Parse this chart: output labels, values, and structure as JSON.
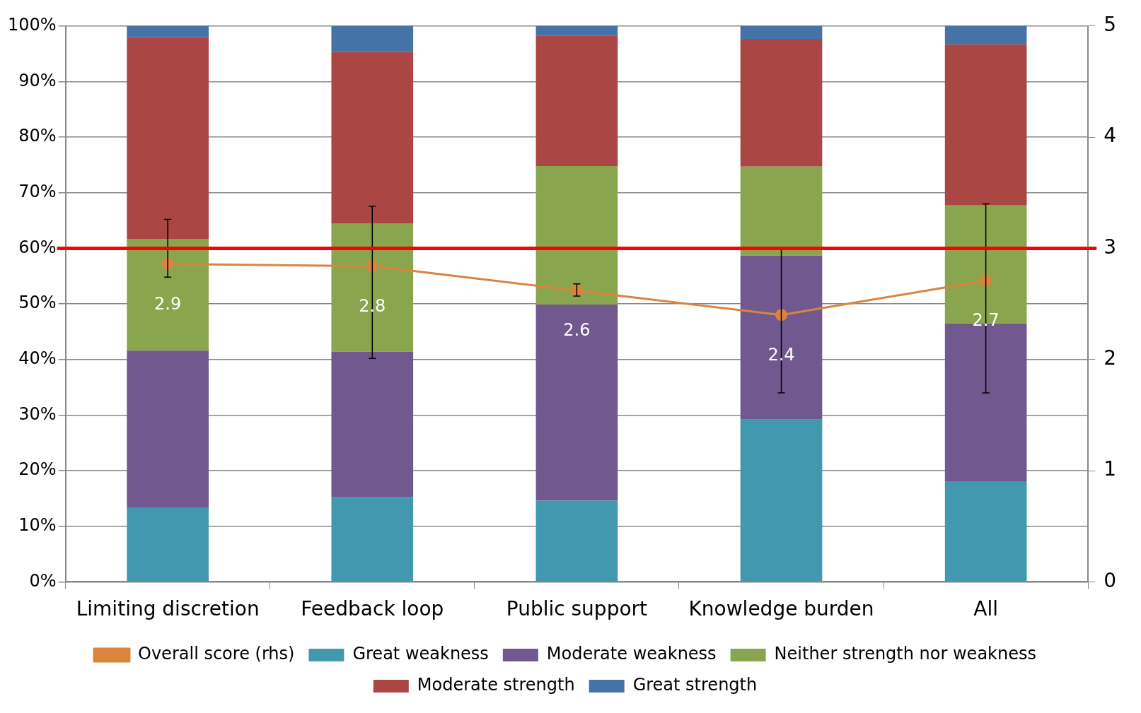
{
  "chart_data": {
    "type": "bar",
    "stacked": true,
    "categories": [
      "Limiting discretion",
      "Feedback loop",
      "Public support",
      "Knowledge burden",
      "All"
    ],
    "series": [
      {
        "name": "Great weakness",
        "color": "#4198af",
        "values": [
          13.4,
          15.2,
          14.6,
          29.2,
          18.1
        ]
      },
      {
        "name": "Moderate weakness",
        "color": "#71588f",
        "values": [
          28.2,
          26.2,
          35.3,
          29.5,
          28.4
        ]
      },
      {
        "name": "Neither strength nor weakness",
        "color": "#89a54e",
        "values": [
          20.1,
          23.1,
          24.9,
          16.0,
          21.2
        ]
      },
      {
        "name": "Moderate strength",
        "color": "#aa4643",
        "values": [
          36.3,
          30.8,
          23.5,
          23.0,
          29.0
        ]
      },
      {
        "name": "Great strength",
        "color": "#4572a7",
        "values": [
          2.0,
          4.7,
          1.7,
          2.3,
          3.3
        ]
      },
      {
        "name": "Overall score (rhs)",
        "type": "line",
        "axis": "y2",
        "color": "#db843d",
        "marker": "circle",
        "values": [
          2.86,
          2.84,
          2.62,
          2.4,
          2.71
        ],
        "value_labels": [
          "2.9",
          "2.8",
          "2.6",
          "2.4",
          "2.7"
        ],
        "errors": [
          [
            2.74,
            3.26
          ],
          [
            2.01,
            3.38
          ],
          [
            2.57,
            2.68
          ],
          [
            1.7,
            3.01
          ],
          [
            1.7,
            3.4
          ]
        ]
      }
    ],
    "ylim": [
      0,
      100
    ],
    "yticks": [
      {
        "value": 0,
        "label": "0%"
      },
      {
        "value": 10,
        "label": "10%"
      },
      {
        "value": 20,
        "label": "20%"
      },
      {
        "value": 30,
        "label": "30%"
      },
      {
        "value": 40,
        "label": "40%"
      },
      {
        "value": 50,
        "label": "50%"
      },
      {
        "value": 60,
        "label": "60%"
      },
      {
        "value": 70,
        "label": "70%"
      },
      {
        "value": 80,
        "label": "80%"
      },
      {
        "value": 90,
        "label": "90%"
      },
      {
        "value": 100,
        "label": "100%"
      }
    ],
    "y2lim": [
      0,
      5
    ],
    "y2ticks": [
      0,
      1,
      2,
      3,
      4,
      5
    ],
    "ref_lines": [
      {
        "axis": "y2",
        "value": 3,
        "color": "#ff0000"
      }
    ],
    "grid": "y",
    "legend": "bottom"
  }
}
